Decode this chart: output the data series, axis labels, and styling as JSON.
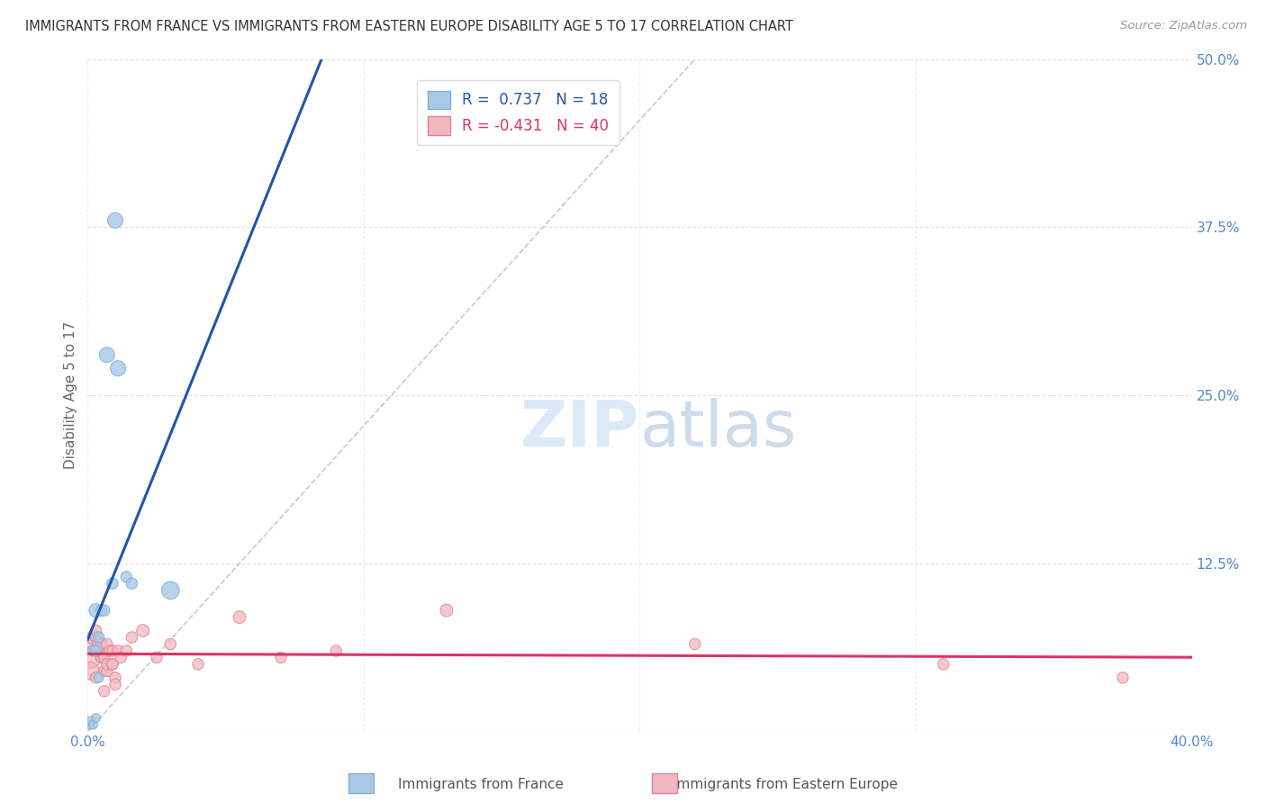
{
  "title": "IMMIGRANTS FROM FRANCE VS IMMIGRANTS FROM EASTERN EUROPE DISABILITY AGE 5 TO 17 CORRELATION CHART",
  "source": "Source: ZipAtlas.com",
  "ylabel": "Disability Age 5 to 17",
  "xlim": [
    0.0,
    0.4
  ],
  "ylim": [
    0.0,
    0.5
  ],
  "xticks": [
    0.0,
    0.1,
    0.2,
    0.3,
    0.4
  ],
  "yticks": [
    0.0,
    0.125,
    0.25,
    0.375,
    0.5
  ],
  "xticklabels": [
    "0.0%",
    "",
    "",
    "",
    "40.0%"
  ],
  "yticklabels": [
    "",
    "12.5%",
    "25.0%",
    "37.5%",
    "50.0%"
  ],
  "france_color": "#a8c8e8",
  "france_edge_color": "#7bafd4",
  "eastern_color": "#f0b8c0",
  "eastern_edge_color": "#e08090",
  "france_line_color": "#2255aa",
  "eastern_line_color": "#dd3366",
  "diag_line_color": "#bbbbcc",
  "R_france": 0.737,
  "N_france": 18,
  "R_eastern": -0.431,
  "N_eastern": 40,
  "background_color": "#ffffff",
  "grid_color": "#dddddd",
  "france_points": [
    [
      0.001,
      0.005
    ],
    [
      0.001,
      0.008
    ],
    [
      0.002,
      0.005
    ],
    [
      0.002,
      0.06
    ],
    [
      0.003,
      0.06
    ],
    [
      0.003,
      0.09
    ],
    [
      0.003,
      0.01
    ],
    [
      0.004,
      0.07
    ],
    [
      0.004,
      0.04
    ],
    [
      0.005,
      0.09
    ],
    [
      0.006,
      0.09
    ],
    [
      0.007,
      0.28
    ],
    [
      0.009,
      0.11
    ],
    [
      0.01,
      0.38
    ],
    [
      0.011,
      0.27
    ],
    [
      0.014,
      0.115
    ],
    [
      0.016,
      0.11
    ],
    [
      0.03,
      0.105
    ]
  ],
  "eastern_points": [
    [
      0.001,
      0.055
    ],
    [
      0.001,
      0.045
    ],
    [
      0.002,
      0.065
    ],
    [
      0.002,
      0.07
    ],
    [
      0.003,
      0.07
    ],
    [
      0.003,
      0.04
    ],
    [
      0.003,
      0.075
    ],
    [
      0.004,
      0.065
    ],
    [
      0.004,
      0.06
    ],
    [
      0.004,
      0.06
    ],
    [
      0.005,
      0.065
    ],
    [
      0.005,
      0.055
    ],
    [
      0.005,
      0.055
    ],
    [
      0.006,
      0.03
    ],
    [
      0.006,
      0.045
    ],
    [
      0.006,
      0.055
    ],
    [
      0.007,
      0.065
    ],
    [
      0.007,
      0.045
    ],
    [
      0.007,
      0.05
    ],
    [
      0.008,
      0.06
    ],
    [
      0.009,
      0.06
    ],
    [
      0.009,
      0.05
    ],
    [
      0.009,
      0.05
    ],
    [
      0.01,
      0.04
    ],
    [
      0.01,
      0.035
    ],
    [
      0.011,
      0.06
    ],
    [
      0.012,
      0.055
    ],
    [
      0.014,
      0.06
    ],
    [
      0.016,
      0.07
    ],
    [
      0.02,
      0.075
    ],
    [
      0.025,
      0.055
    ],
    [
      0.03,
      0.065
    ],
    [
      0.04,
      0.05
    ],
    [
      0.055,
      0.085
    ],
    [
      0.07,
      0.055
    ],
    [
      0.09,
      0.06
    ],
    [
      0.13,
      0.09
    ],
    [
      0.22,
      0.065
    ],
    [
      0.31,
      0.05
    ],
    [
      0.375,
      0.04
    ]
  ],
  "france_sizes": [
    50,
    50,
    50,
    80,
    80,
    120,
    50,
    80,
    60,
    80,
    80,
    150,
    80,
    150,
    150,
    80,
    80,
    200
  ],
  "eastern_sizes": [
    300,
    200,
    120,
    120,
    80,
    80,
    80,
    100,
    80,
    80,
    80,
    80,
    80,
    80,
    80,
    80,
    80,
    80,
    80,
    80,
    80,
    80,
    80,
    80,
    80,
    80,
    80,
    80,
    80,
    100,
    80,
    80,
    80,
    100,
    80,
    80,
    100,
    80,
    80,
    80
  ]
}
